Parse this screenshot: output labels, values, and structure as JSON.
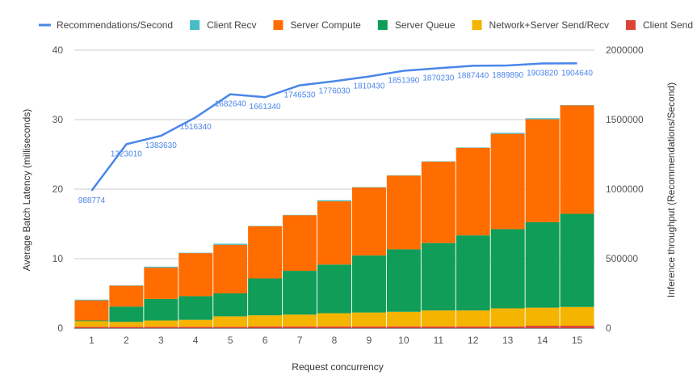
{
  "chart_data": {
    "type": "bar",
    "stacked": true,
    "x_title": "Request concurrency",
    "y_left_title": "Average Batch Latency (milliseconds)",
    "y_right_title": "Inference throughput (Recommendations/Second)",
    "categories": [
      "1",
      "2",
      "3",
      "4",
      "5",
      "6",
      "7",
      "8",
      "9",
      "10",
      "11",
      "12",
      "13",
      "14",
      "15"
    ],
    "y_left_range": [
      0,
      40
    ],
    "y_left_ticks": [
      "0",
      "10",
      "20",
      "30",
      "40"
    ],
    "y_right_range": [
      0,
      2000000
    ],
    "y_right_ticks": [
      "0",
      "500000",
      "1000000",
      "1500000",
      "2000000"
    ],
    "legend_position": "top",
    "grid": true,
    "series": [
      {
        "name": "Client Send",
        "color": "#db4437",
        "values": [
          0.2,
          0.2,
          0.2,
          0.2,
          0.2,
          0.25,
          0.25,
          0.25,
          0.25,
          0.25,
          0.25,
          0.25,
          0.25,
          0.35,
          0.35
        ]
      },
      {
        "name": "Network+Server Send/Recv",
        "color": "#f4b400",
        "values": [
          0.8,
          0.7,
          0.9,
          1.0,
          1.5,
          1.6,
          1.7,
          1.9,
          2.0,
          2.1,
          2.3,
          2.3,
          2.6,
          2.6,
          2.7
        ]
      },
      {
        "name": "Server Queue",
        "color": "#0f9d58",
        "values": [
          0.1,
          2.2,
          3.1,
          3.4,
          3.3,
          5.3,
          6.3,
          7.0,
          8.2,
          9.0,
          9.7,
          10.8,
          11.4,
          12.3,
          13.4
        ]
      },
      {
        "name": "Server Compute",
        "color": "#ff6d01",
        "values": [
          2.9,
          3.0,
          4.5,
          6.2,
          7.0,
          7.5,
          8.0,
          9.1,
          9.8,
          10.6,
          11.7,
          12.6,
          13.7,
          14.8,
          15.6
        ]
      },
      {
        "name": "Client Recv",
        "color": "#46bdc6",
        "values": [
          0.1,
          0.05,
          0.15,
          0.05,
          0.15,
          0.05,
          0.05,
          0.15,
          0.05,
          0.05,
          0.05,
          0.05,
          0.15,
          0.15,
          0.05
        ]
      }
    ],
    "line_series": {
      "name": "Recommendations/Second",
      "color": "#4a86e8",
      "axis": "right",
      "values": [
        988774,
        1323010,
        1383630,
        1516340,
        1682640,
        1661340,
        1746530,
        1776030,
        1810430,
        1851390,
        1870230,
        1887440,
        1889890,
        1903820,
        1904640
      ],
      "labels": [
        "988774",
        "1323010",
        "1383630",
        "1516340",
        "1682640",
        "1661340",
        "1746530",
        "1776030",
        "1810430",
        "1851390",
        "1870230",
        "1887440",
        "1889890",
        "1903820",
        "1904640"
      ]
    },
    "legend_order": [
      "Recommendations/Second",
      "Client Recv",
      "Server Compute",
      "Server Queue",
      "Network+Server Send/Recv",
      "Client Send"
    ]
  }
}
